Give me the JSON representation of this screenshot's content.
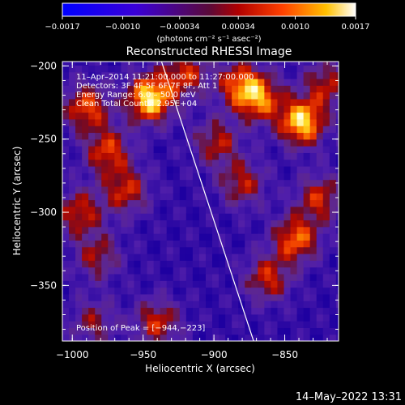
{
  "chart_data": {
    "type": "heatmap",
    "title": "Reconstructed RHESSI Image",
    "xlabel": "Heliocentric X (arcsec)",
    "ylabel": "Heliocentric Y (arcsec)",
    "x_ticks": [
      "−1000",
      "−950",
      "−900",
      "−850"
    ],
    "x_tick_values": [
      -1000,
      -950,
      -900,
      -850
    ],
    "y_ticks": [
      "−200",
      "−250",
      "−300",
      "−350"
    ],
    "y_tick_values": [
      -200,
      -250,
      -300,
      -350
    ],
    "xlim": [
      -1007,
      -812
    ],
    "ylim": [
      -388,
      -197
    ],
    "colorbar": {
      "ticks": [
        "−0.0017",
        "−0.0010",
        "−0.00034",
        "0.00034",
        "0.0010",
        "0.0017"
      ],
      "tick_values": [
        -0.0017,
        -0.001,
        -0.00034,
        0.00034,
        0.001,
        0.0017
      ],
      "range": [
        -0.0017,
        0.0017
      ],
      "unit_label": "(photons cm⁻² s⁻¹ asec⁻²)"
    },
    "annotations": [
      "11–Apr–2014 11:21:00.000 to 11:27:00.000",
      "Detectors: 3F 4F 5F 6F 7F 8F, Att 1",
      "Energy Range: 6.0 – 50.0 keV",
      "Clean     Total Counts: 2.95E+04"
    ],
    "peak_label": "Position of Peak = [−944,−223]",
    "peak": [
      -944,
      -223
    ],
    "limb_line": [
      [
        -937,
        -197
      ],
      [
        -872,
        -388
      ]
    ],
    "hotspots": [
      {
        "x": -945,
        "y": -222,
        "v": 1.0
      },
      {
        "x": -838,
        "y": -238,
        "v": 0.95
      },
      {
        "x": -868,
        "y": -222,
        "v": 0.7
      },
      {
        "x": -882,
        "y": -212,
        "v": 0.6
      },
      {
        "x": -990,
        "y": -228,
        "v": 0.65
      },
      {
        "x": -975,
        "y": -258,
        "v": 0.6
      },
      {
        "x": -962,
        "y": -285,
        "v": 0.55
      },
      {
        "x": -995,
        "y": -300,
        "v": 0.55
      },
      {
        "x": -982,
        "y": -330,
        "v": 0.45
      },
      {
        "x": -842,
        "y": -318,
        "v": 0.7
      },
      {
        "x": -862,
        "y": -345,
        "v": 0.55
      },
      {
        "x": -880,
        "y": -280,
        "v": 0.5
      },
      {
        "x": -825,
        "y": -290,
        "v": 0.55
      },
      {
        "x": -940,
        "y": -375,
        "v": 0.55
      },
      {
        "x": -985,
        "y": -375,
        "v": 0.4
      },
      {
        "x": -898,
        "y": -252,
        "v": 0.5
      },
      {
        "x": -820,
        "y": -212,
        "v": 0.5
      },
      {
        "x": -920,
        "y": -205,
        "v": 0.55
      }
    ]
  },
  "footer": {
    "timestamp": "14–May–2022 13:31"
  }
}
